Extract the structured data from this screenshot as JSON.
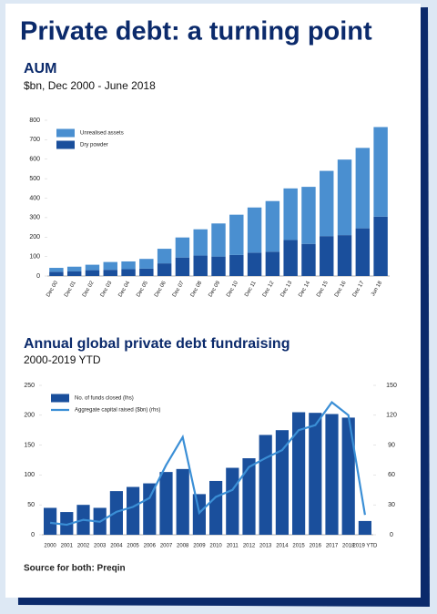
{
  "title": "Private debt: a turning point",
  "source": "Source for both: Preqin",
  "chart_data": [
    {
      "type": "bar",
      "stacked": true,
      "title": "AUM",
      "subtitle": "$bn, Dec 2000 - June 2018",
      "categories": [
        "Dec 00",
        "Dec 01",
        "Dec 02",
        "Dec 03",
        "Dec 04",
        "Dec 05",
        "Dec 06",
        "Dec 07",
        "Dec 08",
        "Dec 09",
        "Dec 10",
        "Dec 11",
        "Dec 12",
        "Dec 13",
        "Dec 14",
        "Dec 15",
        "Dec 16",
        "Dec 17",
        "Jun 18"
      ],
      "series": [
        {
          "name": "Dry powder",
          "color": "#1a4f9c",
          "values": [
            22,
            25,
            30,
            32,
            35,
            38,
            65,
            95,
            105,
            100,
            108,
            120,
            125,
            185,
            165,
            205,
            210,
            245,
            305
          ]
        },
        {
          "name": "Unrealised assets",
          "color": "#4a8fd0",
          "values": [
            20,
            23,
            28,
            40,
            40,
            50,
            75,
            103,
            135,
            170,
            207,
            232,
            260,
            265,
            293,
            335,
            388,
            413,
            460
          ]
        }
      ],
      "ylim": [
        0,
        800
      ],
      "yticks": [
        0,
        100,
        200,
        300,
        400,
        500,
        600,
        700,
        800
      ],
      "grid": false,
      "legend": "top-left"
    },
    {
      "type": "bar",
      "title": "Annual global private debt fundraising",
      "subtitle": "2000-2019 YTD",
      "categories": [
        "2000",
        "2001",
        "2002",
        "2003",
        "2004",
        "2005",
        "2006",
        "2007",
        "2008",
        "2009",
        "2010",
        "2011",
        "2012",
        "2013",
        "2014",
        "2015",
        "2016",
        "2017",
        "2018",
        "2019 YTD"
      ],
      "series": [
        {
          "name": "No. of funds closed (lhs)",
          "color": "#1a4f9c",
          "type": "bar",
          "values": [
            45,
            38,
            50,
            45,
            73,
            80,
            86,
            105,
            110,
            68,
            90,
            112,
            128,
            167,
            175,
            205,
            204,
            202,
            196,
            23
          ]
        },
        {
          "name": "Aggregate capital raised ($bn) (rhs)",
          "color": "#3b8fd6",
          "type": "line",
          "axis": "y2",
          "values": [
            12,
            10,
            15,
            13,
            23,
            28,
            37,
            70,
            98,
            22,
            38,
            45,
            68,
            77,
            85,
            105,
            110,
            133,
            120,
            20
          ]
        }
      ],
      "ylim": [
        0,
        250
      ],
      "yticks": [
        0,
        50,
        100,
        150,
        200,
        250
      ],
      "y2lim": [
        0,
        150
      ],
      "y2ticks": [
        0,
        30,
        60,
        90,
        120,
        150
      ],
      "grid": false,
      "legend": "top-left"
    }
  ]
}
